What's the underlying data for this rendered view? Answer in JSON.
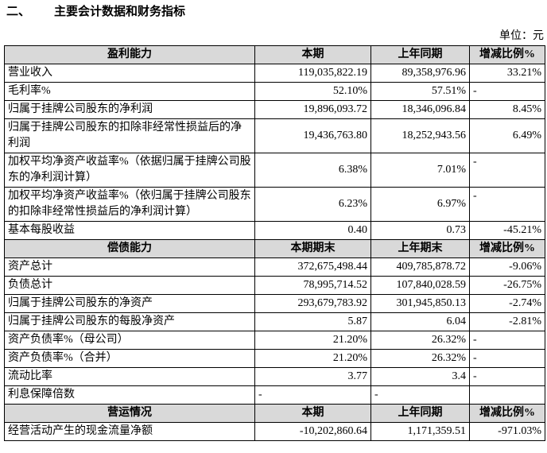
{
  "title": {
    "number": "二、",
    "text": "主要会计数据和财务指标"
  },
  "unit": "单位：元",
  "sections": [
    {
      "header": [
        "盈利能力",
        "本期",
        "上年同期",
        "增减比例%"
      ],
      "rows": [
        [
          "营业收入",
          "119,035,822.19",
          "89,358,976.96",
          "33.21%"
        ],
        [
          "毛利率%",
          "52.10%",
          "57.51%",
          "-"
        ],
        [
          "归属于挂牌公司股东的净利润",
          "19,896,093.72",
          "18,346,096.84",
          "8.45%"
        ],
        [
          "归属于挂牌公司股东的扣除非经常性损益后的净利润",
          "19,436,763.80",
          "18,252,943.56",
          "6.49%"
        ],
        [
          "加权平均净资产收益率%（依据归属于挂牌公司股东的净利润计算）",
          "6.38%",
          "7.01%",
          "-"
        ],
        [
          "加权平均净资产收益率%（依归属于挂牌公司股东的扣除非经常性损益后的净利润计算）",
          "6.23%",
          "6.97%",
          "-"
        ],
        [
          "基本每股收益",
          "0.40",
          "0.73",
          "-45.21%"
        ]
      ]
    },
    {
      "header": [
        "偿债能力",
        "本期期末",
        "上年期末",
        "增减比例%"
      ],
      "rows": [
        [
          "资产总计",
          "372,675,498.44",
          "409,785,878.72",
          "-9.06%"
        ],
        [
          "负债总计",
          "78,995,714.52",
          "107,840,028.59",
          "-26.75%"
        ],
        [
          "归属于挂牌公司股东的净资产",
          "293,679,783.92",
          "301,945,850.13",
          "-2.74%"
        ],
        [
          "归属于挂牌公司股东的每股净资产",
          "5.87",
          "6.04",
          "-2.81%"
        ],
        [
          "资产负债率%（母公司）",
          "21.20%",
          "26.32%",
          "-"
        ],
        [
          "资产负债率%（合并）",
          "21.20%",
          "26.32%",
          "-"
        ],
        [
          "流动比率",
          "3.77",
          "3.4",
          "-"
        ],
        [
          "利息保障倍数",
          "-",
          "-",
          null
        ]
      ]
    },
    {
      "header": [
        "营运情况",
        "本期",
        "上年同期",
        "增减比例%"
      ],
      "rows": [
        [
          "经营活动产生的现金流量净额",
          "-10,202,860.64",
          "1,171,359.51",
          "-971.03%"
        ]
      ]
    }
  ]
}
